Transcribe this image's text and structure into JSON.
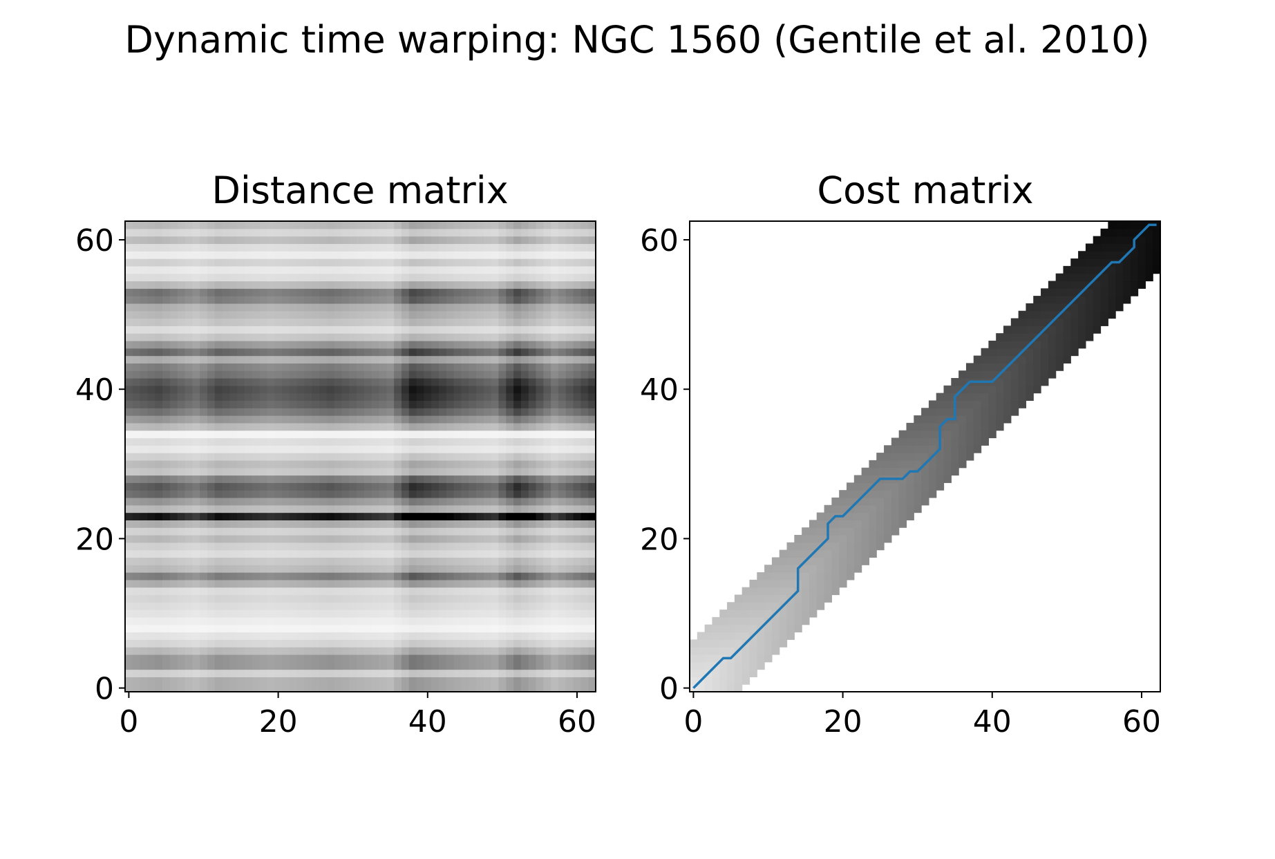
{
  "figure": {
    "suptitle": "Dynamic time warping: NGC 1560 (Gentile et al. 2010)"
  },
  "chart_data": [
    {
      "type": "heatmap",
      "title": "Distance matrix",
      "colormap": "grayscale (white = low, black = high)",
      "grid": false,
      "xlim": [
        -0.5,
        62.5
      ],
      "ylim": [
        -0.5,
        62.5
      ],
      "xticks": [
        0,
        20,
        40,
        60
      ],
      "yticks": [
        0,
        20,
        40,
        60
      ],
      "size": 63,
      "structure": "Per-cell distance values were not printed; shading is approximated as a row darkness profile combined with a column profile.",
      "row_darkness": {
        "0": 0.35,
        "1": 0.35,
        "2": 0.2,
        "3": 0.45,
        "4": 0.45,
        "5": 0.3,
        "6": 0.18,
        "7": 0.12,
        "8": 0.05,
        "9": 0.08,
        "10": 0.12,
        "11": 0.15,
        "12": 0.18,
        "13": 0.15,
        "14": 0.35,
        "15": 0.55,
        "16": 0.3,
        "17": 0.25,
        "18": 0.15,
        "19": 0.2,
        "20": 0.3,
        "21": 0.2,
        "22": 0.35,
        "23": 1.0,
        "24": 0.3,
        "25": 0.45,
        "26": 0.65,
        "27": 0.7,
        "28": 0.55,
        "29": 0.25,
        "30": 0.3,
        "31": 0.2,
        "32": 0.1,
        "33": 0.15,
        "34": 0.05,
        "35": 0.3,
        "36": 0.45,
        "37": 0.6,
        "38": 0.7,
        "39": 0.75,
        "40": 0.78,
        "41": 0.72,
        "42": 0.6,
        "43": 0.55,
        "44": 0.35,
        "45": 0.65,
        "46": 0.45,
        "47": 0.25,
        "48": 0.15,
        "49": 0.25,
        "50": 0.3,
        "51": 0.35,
        "52": 0.55,
        "53": 0.6,
        "54": 0.3,
        "55": 0.15,
        "56": 0.1,
        "57": 0.2,
        "58": 0.08,
        "59": 0.15,
        "60": 0.3,
        "61": 0.18,
        "62": 0.3
      },
      "column_weight": {
        "0": 0.9,
        "4": 1.0,
        "9": 0.8,
        "12": 1.0,
        "19": 0.85,
        "27": 1.0,
        "35": 0.8,
        "38": 1.25,
        "44": 1.0,
        "49": 0.85,
        "52": 1.25,
        "57": 0.8,
        "62": 1.1
      },
      "darkest_row": 23
    },
    {
      "type": "heatmap",
      "title": "Cost matrix",
      "colormap": "grayscale (white = low, black = high); cells outside band blank",
      "grid": false,
      "xlim": [
        -0.5,
        62.5
      ],
      "ylim": [
        -0.5,
        62.5
      ],
      "xticks": [
        0,
        20,
        40,
        60
      ],
      "yticks": [
        0,
        20,
        40,
        60
      ],
      "size": 63,
      "band_halfwidth": 6,
      "warping_path_color": "#1f77b4",
      "warping_path": {
        "x": [
          0,
          4,
          5,
          14,
          14,
          18,
          18,
          19,
          20,
          25,
          28,
          29,
          30,
          33,
          33,
          34,
          35,
          35,
          37,
          40,
          56,
          57,
          59,
          59,
          61,
          62
        ],
        "y": [
          0,
          4,
          4,
          13,
          16,
          20,
          22,
          23,
          23,
          28,
          28,
          29,
          29,
          32,
          35,
          36,
          36,
          39,
          41,
          41,
          57,
          57,
          59,
          60,
          62,
          62
        ]
      }
    }
  ]
}
